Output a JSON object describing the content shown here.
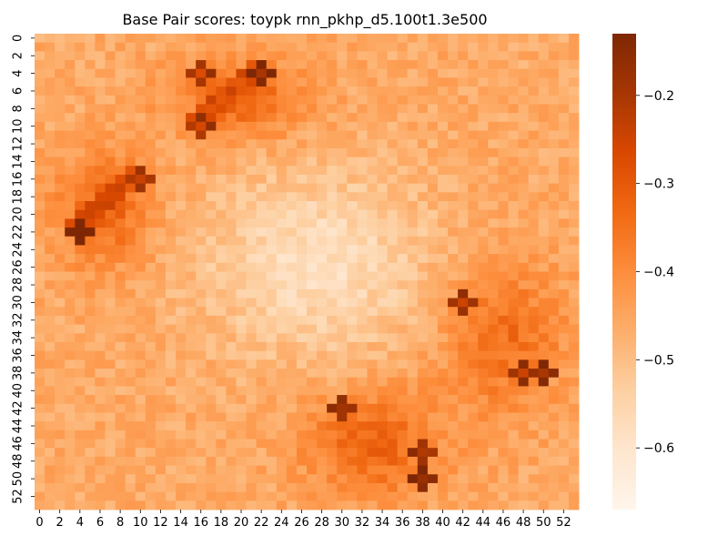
{
  "chart_data": {
    "type": "heatmap",
    "title": "Base Pair scores: toypk rnn_pkhp_d5.100t1.3e500",
    "xlabel": "",
    "ylabel": "",
    "n_rows": 54,
    "n_cols": 54,
    "x_tick_labels": [
      "0",
      "2",
      "4",
      "6",
      "8",
      "10",
      "12",
      "14",
      "16",
      "18",
      "20",
      "22",
      "24",
      "26",
      "28",
      "30",
      "32",
      "34",
      "36",
      "38",
      "40",
      "42",
      "44",
      "46",
      "48",
      "50",
      "52"
    ],
    "y_tick_labels": [
      "0",
      "2",
      "4",
      "6",
      "8",
      "10",
      "12",
      "14",
      "16",
      "18",
      "20",
      "22",
      "24",
      "26",
      "28",
      "30",
      "32",
      "34",
      "36",
      "38",
      "40",
      "42",
      "44",
      "46",
      "48",
      "50",
      "52"
    ],
    "colormap": "Oranges",
    "colorbar": {
      "range": [
        -0.67,
        -0.13
      ],
      "ticks": [
        -0.2,
        -0.3,
        -0.4,
        -0.5,
        -0.6
      ],
      "tick_labels": [
        "−0.2",
        "−0.3",
        "−0.4",
        "−0.5",
        "−0.6"
      ]
    },
    "value_summary": {
      "baseline": -0.46,
      "regions": [
        {
          "rows": [
            3,
            11
          ],
          "cols": [
            13,
            27
          ],
          "value": -0.32
        },
        {
          "rows": [
            13,
            26
          ],
          "cols": [
            2,
            11
          ],
          "value": -0.32
        },
        {
          "rows": [
            25,
            43
          ],
          "cols": [
            40,
            52
          ],
          "value": -0.34
        },
        {
          "rows": [
            40,
            52
          ],
          "cols": [
            26,
            40
          ],
          "value": -0.32
        },
        {
          "rows": [
            14,
            37
          ],
          "cols": [
            15,
            40
          ],
          "value": -0.58
        }
      ],
      "hotspots": [
        {
          "row": 4,
          "col": 22,
          "value": -0.17
        },
        {
          "row": 22,
          "col": 4,
          "value": -0.16
        },
        {
          "row": 50,
          "col": 38,
          "value": -0.18
        },
        {
          "row": 38,
          "col": 50,
          "value": -0.2
        },
        {
          "row": 42,
          "col": 30,
          "value": -0.22
        },
        {
          "row": 30,
          "col": 42,
          "value": -0.24
        },
        {
          "row": 47,
          "col": 38,
          "value": -0.24
        },
        {
          "row": 38,
          "col": 48,
          "value": -0.24
        },
        {
          "row": 16,
          "col": 10,
          "value": -0.26
        },
        {
          "row": 4,
          "col": 16,
          "value": -0.26
        },
        {
          "row": 10,
          "col": 16,
          "value": -0.25
        }
      ],
      "diagonal_streaks": [
        {
          "from": [
            3,
            22
          ],
          "to": [
            10,
            15
          ],
          "value": -0.27
        },
        {
          "from": [
            22,
            3
          ],
          "to": [
            15,
            10
          ],
          "value": -0.28
        }
      ]
    }
  }
}
